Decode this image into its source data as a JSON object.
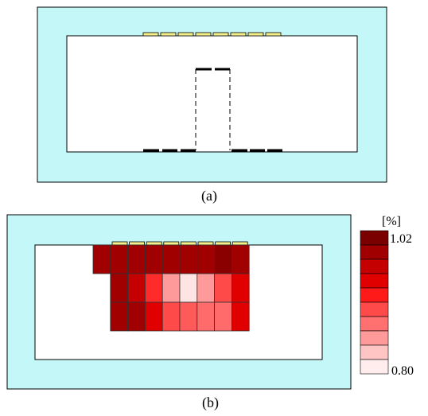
{
  "captions": {
    "a": "(a)",
    "b": "(b)"
  },
  "colorbar": {
    "unit": "[%]",
    "max_label": "1.02",
    "min_label": "0.80",
    "steps": [
      "#7a0000",
      "#a00000",
      "#c40000",
      "#e00000",
      "#ff1a1a",
      "#ff4a4a",
      "#ff7070",
      "#ff9a9a",
      "#ffc4c4",
      "#ffecec"
    ]
  },
  "colors": {
    "outer_region": "#c4f8f8",
    "coil_pad": "#f5f08a"
  },
  "panel_b_grid": [
    [
      "#a00000",
      "#a00000",
      "#a00000",
      "#a00000",
      "#a00000",
      "#a00000",
      "#a00000",
      "#8a0000",
      "#a00000"
    ],
    [
      null,
      "#a00000",
      "#c40000",
      "#ff2a2a",
      "#ff9a9a",
      "#ffe4e4",
      "#ff9a9a",
      "#ff4a4a",
      "#e00000"
    ],
    [
      null,
      "#a00000",
      "#a00000",
      "#e00000",
      "#ff4a4a",
      "#ff5a5a",
      "#ff6a6a",
      "#ff6a6a",
      "#e00000"
    ]
  ]
}
